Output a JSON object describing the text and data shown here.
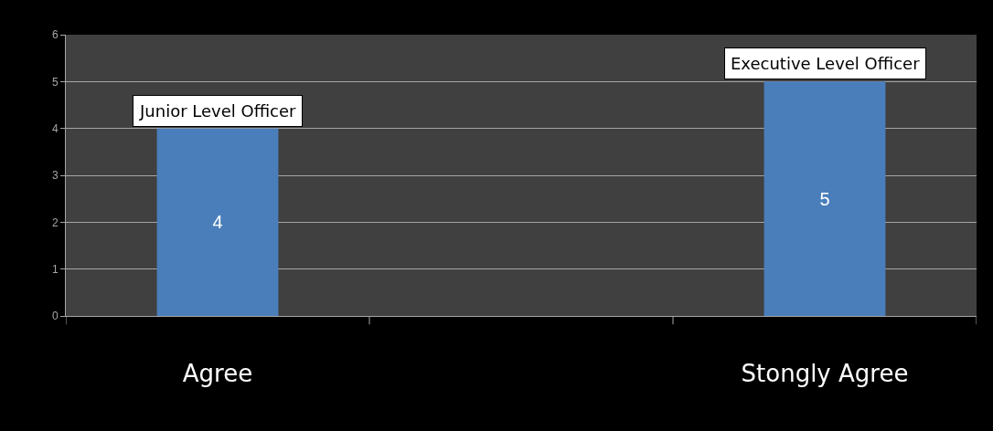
{
  "chart_data": {
    "type": "bar",
    "categories": [
      "Agree",
      null,
      "Stongly Agree"
    ],
    "values": [
      4,
      null,
      5
    ],
    "color": "#4a7ebb",
    "data_labels": true,
    "ylim": [
      0,
      6
    ],
    "yticks": [
      0,
      1,
      2,
      3,
      4,
      5,
      6
    ],
    "grid": "y",
    "annotations": [
      {
        "text": "Junior Level Officer",
        "x": "Agree",
        "y": 4
      },
      {
        "text": "Executive Level Officer",
        "x": "Stongly Agree",
        "y": 5
      }
    ]
  }
}
